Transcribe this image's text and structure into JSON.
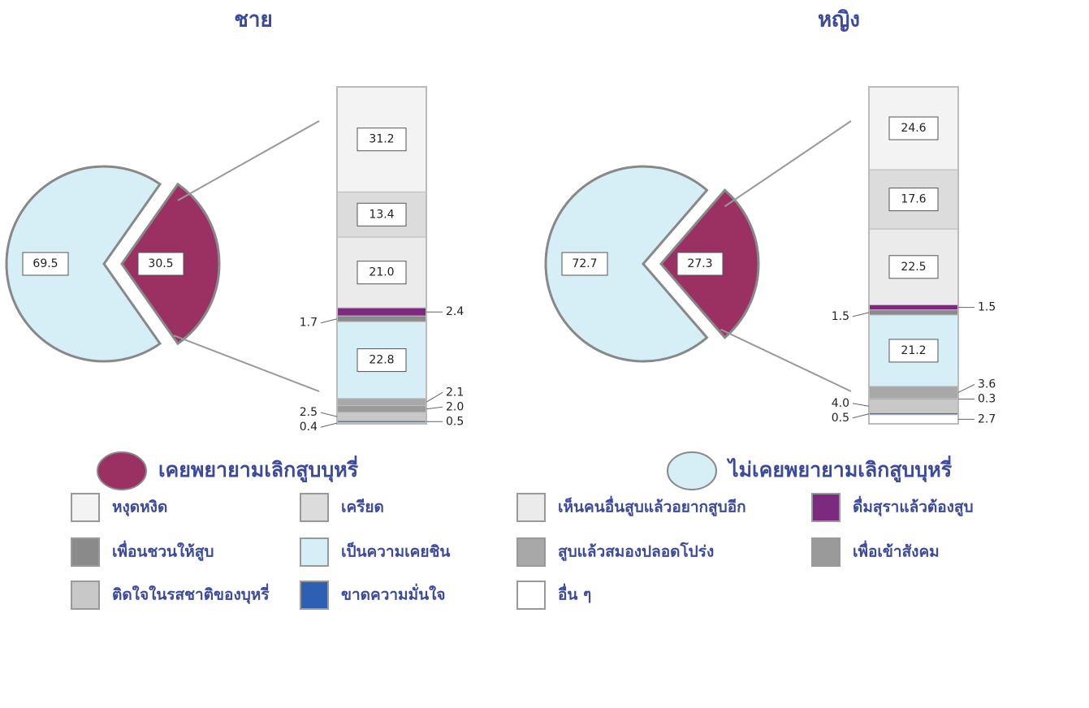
{
  "chart_data": [
    {
      "type": "pie",
      "title": "ชาย",
      "categories": [
        "เคยพยายามเลิกสูบบุหรี่",
        "ไม่เคยพยายามเลิกสูบบุหรี่"
      ],
      "values": [
        30.5,
        69.5
      ],
      "colors": [
        "#9b3163",
        "#d6eef5"
      ],
      "breakdown": {
        "categories": [
          "หงุดหงิด",
          "เครียด",
          "เห็นคนอื่นสูบแล้วอยากสูบอีก",
          "ดื่มสุราแล้วต้องสูบ",
          "เพื่อนชวนให้สูบ",
          "เป็นความเคยชิน",
          "สูบแล้วสมองปลอดโปร่ง",
          "เพื่อเข้าสังคม",
          "ติดใจในรสชาติของบุหรี่",
          "ขาดความมั่นใจ",
          "อื่น ๆ"
        ],
        "values": [
          31.2,
          13.4,
          21.0,
          2.4,
          1.7,
          22.8,
          2.1,
          2.0,
          2.5,
          0.5,
          0.4
        ],
        "value_labels": [
          "31.2",
          "13.4",
          "21.0",
          "2.4",
          "1.7",
          "22.8",
          "2.1",
          "2.0",
          "2.5",
          "0.5",
          "0.4"
        ],
        "colors": [
          "#f3f3f3",
          "#dcdcdc",
          "#ebebeb",
          "#7b2a7f",
          "#8a8a8a",
          "#d6eef5",
          "#a8a8a8",
          "#9a9a9a",
          "#c8c8c8",
          "#2d5fb3",
          "#ffffff"
        ]
      }
    },
    {
      "type": "pie",
      "title": "หญิง",
      "values": [
        27.3,
        72.7
      ],
      "colors": [
        "#9b3163",
        "#d6eef5"
      ],
      "breakdown": {
        "values": [
          24.6,
          17.6,
          22.5,
          1.5,
          1.5,
          21.2,
          3.6,
          0.3,
          4.0,
          0.5,
          2.7
        ],
        "value_labels": [
          "24.6",
          "17.6",
          "22.5",
          "1.5",
          "1.5",
          "21.2",
          "3.6",
          "0.3",
          "4.0",
          "0.5",
          "2.7"
        ],
        "colors": [
          "#f3f3f3",
          "#dcdcdc",
          "#ebebeb",
          "#7b2a7f",
          "#8a8a8a",
          "#d6eef5",
          "#a8a8a8",
          "#9a9a9a",
          "#c8c8c8",
          "#2d5fb3",
          "#ffffff"
        ]
      }
    }
  ]
}
